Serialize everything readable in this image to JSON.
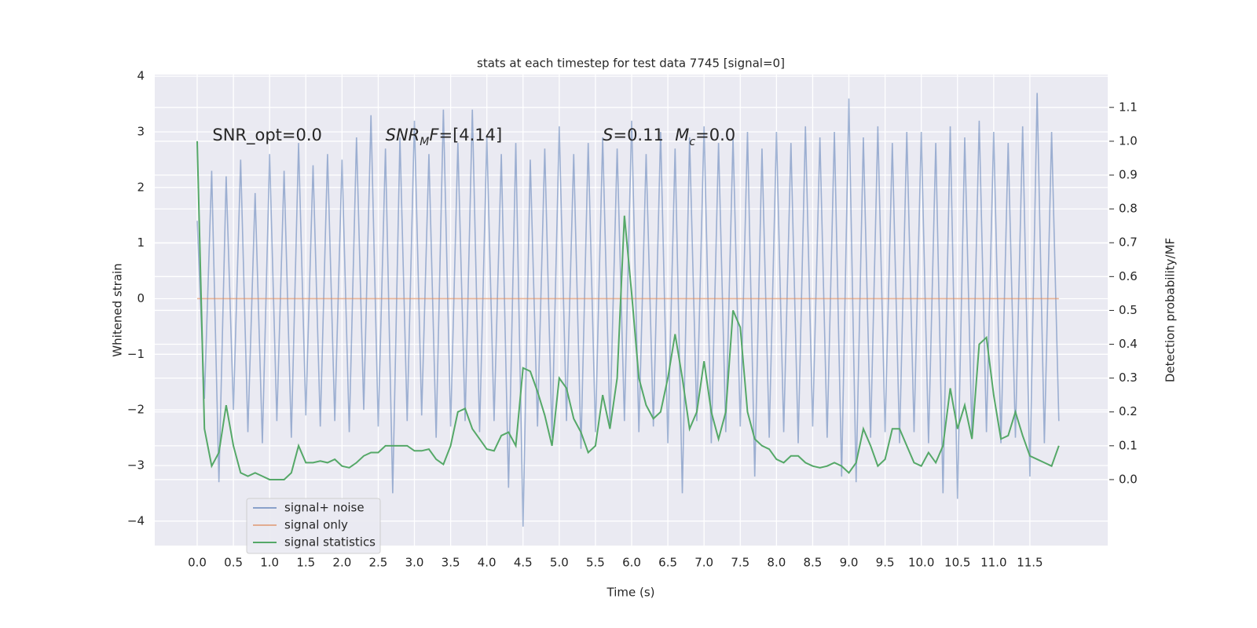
{
  "chart_data": {
    "type": "line",
    "title": "stats at each timestep for test data 7745 [signal=0]",
    "xlabel": "Time (s)",
    "ylabel": "Whitened strain",
    "y2label": "Detection probability/MF",
    "grid": true,
    "legend": "lower left",
    "x": [
      0.0,
      0.1,
      0.2,
      0.3,
      0.4,
      0.5,
      0.6,
      0.7,
      0.8,
      0.9,
      1.0,
      1.1,
      1.2,
      1.3,
      1.4,
      1.5,
      1.6,
      1.7,
      1.8,
      1.9,
      2.0,
      2.1,
      2.2,
      2.3,
      2.4,
      2.5,
      2.6,
      2.7,
      2.8,
      2.9,
      3.0,
      3.1,
      3.2,
      3.3,
      3.4,
      3.5,
      3.6,
      3.7,
      3.8,
      3.9,
      4.0,
      4.1,
      4.2,
      4.3,
      4.4,
      4.5,
      4.6,
      4.7,
      4.8,
      4.9,
      5.0,
      5.1,
      5.2,
      5.3,
      5.4,
      5.5,
      5.6,
      5.7,
      5.8,
      5.9,
      6.0,
      6.1,
      6.2,
      6.3,
      6.4,
      6.5,
      6.6,
      6.7,
      6.8,
      6.9,
      7.0,
      7.1,
      7.2,
      7.3,
      7.4,
      7.5,
      7.6,
      7.7,
      7.8,
      7.9,
      8.0,
      8.1,
      8.2,
      8.3,
      8.4,
      8.5,
      8.6,
      8.7,
      8.8,
      8.9,
      9.0,
      9.1,
      9.2,
      9.3,
      9.4,
      9.5,
      9.6,
      9.7,
      9.8,
      9.9,
      10.0,
      10.1,
      10.2,
      10.3,
      10.4,
      10.5,
      10.6,
      10.7,
      10.8,
      10.9,
      11.0,
      11.1,
      11.2,
      11.3,
      11.4,
      11.5,
      11.6,
      11.7,
      11.8,
      11.9
    ],
    "series": [
      {
        "name": "signal+ noise",
        "color": "#4c72b0",
        "axis": "y",
        "values": [
          1.4,
          -1.8,
          2.3,
          -3.3,
          2.2,
          -2.0,
          2.5,
          -2.4,
          1.9,
          -2.6,
          2.6,
          -2.2,
          2.3,
          -2.5,
          2.8,
          -2.1,
          2.4,
          -2.3,
          2.6,
          -2.2,
          2.5,
          -2.4,
          2.9,
          -2.0,
          3.3,
          -2.3,
          2.7,
          -3.5,
          2.9,
          -2.2,
          3.2,
          -2.1,
          2.6,
          -2.5,
          3.4,
          -2.3,
          2.8,
          -2.2,
          3.4,
          -2.4,
          2.9,
          -2.2,
          2.6,
          -3.4,
          2.8,
          -4.1,
          2.5,
          -2.3,
          2.7,
          -2.5,
          3.1,
          -2.2,
          2.6,
          -2.7,
          2.8,
          -2.4,
          2.9,
          -2.3,
          2.7,
          -2.2,
          3.2,
          -2.4,
          2.6,
          -2.3,
          3.0,
          -2.6,
          2.7,
          -3.5,
          2.9,
          -2.2,
          3.1,
          -2.6,
          2.8,
          -2.4,
          2.9,
          -2.3,
          3.0,
          -3.2,
          2.7,
          -2.5,
          3.0,
          -2.4,
          2.8,
          -2.6,
          3.1,
          -2.3,
          2.9,
          -2.5,
          3.0,
          -3.2,
          3.6,
          -3.3,
          2.9,
          -2.5,
          3.1,
          -2.4,
          2.8,
          -2.6,
          3.0,
          -2.4,
          3.0,
          -2.6,
          2.8,
          -3.5,
          3.1,
          -3.6,
          2.9,
          -2.5,
          3.2,
          -2.4,
          3.0,
          -2.6,
          2.8,
          -2.5,
          3.1,
          -3.2,
          3.7,
          -2.6,
          3.0,
          -2.2
        ]
      },
      {
        "name": "signal only",
        "color": "#dd8452",
        "axis": "y",
        "values": [
          0,
          0,
          0,
          0,
          0,
          0,
          0,
          0,
          0,
          0,
          0,
          0,
          0,
          0,
          0,
          0,
          0,
          0,
          0,
          0,
          0,
          0,
          0,
          0,
          0,
          0,
          0,
          0,
          0,
          0,
          0,
          0,
          0,
          0,
          0,
          0,
          0,
          0,
          0,
          0,
          0,
          0,
          0,
          0,
          0,
          0,
          0,
          0,
          0,
          0,
          0,
          0,
          0,
          0,
          0,
          0,
          0,
          0,
          0,
          0,
          0,
          0,
          0,
          0,
          0,
          0,
          0,
          0,
          0,
          0,
          0,
          0,
          0,
          0,
          0,
          0,
          0,
          0,
          0,
          0,
          0,
          0,
          0,
          0,
          0,
          0,
          0,
          0,
          0,
          0,
          0,
          0,
          0,
          0,
          0,
          0,
          0,
          0,
          0,
          0,
          0,
          0,
          0,
          0,
          0,
          0,
          0,
          0,
          0,
          0,
          0,
          0,
          0,
          0,
          0,
          0,
          0,
          0,
          0,
          0
        ]
      },
      {
        "name": "signal statistics",
        "color": "#55a868",
        "axis": "y2",
        "values": [
          1.0,
          0.15,
          0.04,
          0.08,
          0.22,
          0.1,
          0.02,
          0.01,
          0.02,
          0.01,
          0.0,
          0.0,
          0.0,
          0.02,
          0.1,
          0.05,
          0.05,
          0.055,
          0.05,
          0.06,
          0.04,
          0.035,
          0.05,
          0.07,
          0.08,
          0.08,
          0.1,
          0.1,
          0.1,
          0.1,
          0.085,
          0.085,
          0.09,
          0.06,
          0.045,
          0.1,
          0.2,
          0.21,
          0.15,
          0.12,
          0.09,
          0.085,
          0.13,
          0.14,
          0.1,
          0.33,
          0.32,
          0.26,
          0.19,
          0.1,
          0.3,
          0.27,
          0.18,
          0.14,
          0.08,
          0.1,
          0.25,
          0.15,
          0.3,
          0.78,
          0.55,
          0.3,
          0.22,
          0.18,
          0.2,
          0.3,
          0.43,
          0.3,
          0.15,
          0.2,
          0.35,
          0.2,
          0.12,
          0.2,
          0.5,
          0.45,
          0.2,
          0.12,
          0.1,
          0.09,
          0.06,
          0.05,
          0.07,
          0.07,
          0.05,
          0.04,
          0.035,
          0.04,
          0.05,
          0.04,
          0.02,
          0.05,
          0.15,
          0.1,
          0.04,
          0.06,
          0.15,
          0.15,
          0.1,
          0.05,
          0.04,
          0.08,
          0.05,
          0.1,
          0.27,
          0.15,
          0.22,
          0.12,
          0.4,
          0.42,
          0.25,
          0.12,
          0.13,
          0.2,
          0.13,
          0.07,
          0.06,
          0.05,
          0.04,
          0.1
        ]
      }
    ],
    "annotations": [
      {
        "x": 0.21,
        "y": 2.93,
        "parts": [
          {
            "text": "SNR_opt=0.0"
          }
        ]
      },
      {
        "x": 2.6,
        "y": 2.93,
        "parts": [
          {
            "text": "SNR",
            "italic": true
          },
          {
            "text": "M",
            "italic": true,
            "sub": true
          },
          {
            "text": "F",
            "italic": true
          },
          {
            "text": "=[4.14]"
          }
        ]
      },
      {
        "x": 5.6,
        "y": 2.93,
        "parts": [
          {
            "text": "S",
            "italic": true
          },
          {
            "text": "=0.11"
          }
        ]
      },
      {
        "x": 6.6,
        "y": 2.93,
        "parts": [
          {
            "text": "M",
            "italic": true
          },
          {
            "text": "c",
            "italic": true,
            "sub": true
          },
          {
            "text": "=0.0"
          }
        ]
      }
    ],
    "xlim": [
      -0.586,
      12.575
    ],
    "ylim": [
      -4.44,
      4.03
    ],
    "y2lim": [
      -0.195,
      1.197
    ],
    "xticks": [
      {
        "value": 0.0,
        "label": "0.0"
      },
      {
        "value": 0.5,
        "label": "0.5"
      },
      {
        "value": 1.0,
        "label": "1.0"
      },
      {
        "value": 1.5,
        "label": "1.5"
      },
      {
        "value": 2.0,
        "label": "2.0"
      },
      {
        "value": 2.5,
        "label": "2.5"
      },
      {
        "value": 3.0,
        "label": "3.0"
      },
      {
        "value": 3.5,
        "label": "3.5"
      },
      {
        "value": 4.0,
        "label": "4.0"
      },
      {
        "value": 4.5,
        "label": "4.5"
      },
      {
        "value": 5.0,
        "label": "5.0"
      },
      {
        "value": 5.5,
        "label": "5.5"
      },
      {
        "value": 6.0,
        "label": "6.0"
      },
      {
        "value": 6.5,
        "label": "6.5"
      },
      {
        "value": 7.0,
        "label": "7.0"
      },
      {
        "value": 7.5,
        "label": "7.5"
      },
      {
        "value": 8.0,
        "label": "8.0"
      },
      {
        "value": 8.5,
        "label": "8.5"
      },
      {
        "value": 9.0,
        "label": "9.0"
      },
      {
        "value": 9.5,
        "label": "9.5"
      },
      {
        "value": 10.0,
        "label": "10.0"
      },
      {
        "value": 10.5,
        "label": "10.5"
      },
      {
        "value": 11.0,
        "label": "11.0"
      },
      {
        "value": 11.5,
        "label": "11.5"
      }
    ],
    "yticks": [
      {
        "value": -4,
        "label": "−4"
      },
      {
        "value": -3,
        "label": "−3"
      },
      {
        "value": -2,
        "label": "−2"
      },
      {
        "value": -1,
        "label": "−1"
      },
      0,
      1,
      2,
      3,
      4
    ],
    "y2ticks": [
      {
        "value": 0.0,
        "label": "0.0"
      },
      {
        "value": 0.1,
        "label": "0.1"
      },
      {
        "value": 0.2,
        "label": "0.2"
      },
      {
        "value": 0.3,
        "label": "0.3"
      },
      {
        "value": 0.4,
        "label": "0.4"
      },
      {
        "value": 0.5,
        "label": "0.5"
      },
      {
        "value": 0.6,
        "label": "0.6"
      },
      {
        "value": 0.7,
        "label": "0.7"
      },
      {
        "value": 0.8,
        "label": "0.8"
      },
      {
        "value": 0.9,
        "label": "0.9"
      },
      {
        "value": 1.0,
        "label": "1.0"
      },
      {
        "value": 1.1,
        "label": "1.1"
      }
    ]
  }
}
